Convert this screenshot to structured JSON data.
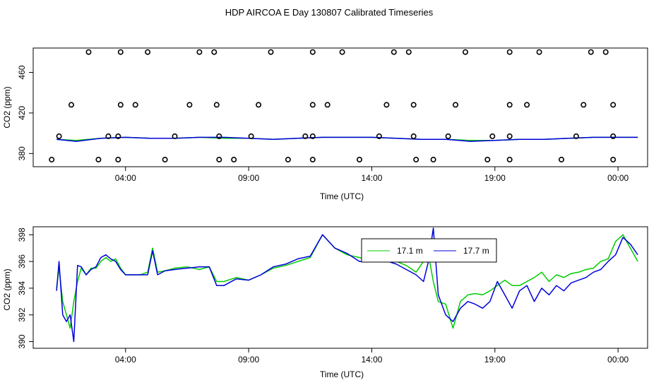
{
  "title": "HDP AIRCOA E  Day 130807  Calibrated Timeseries",
  "colors": {
    "green": "#00cc00",
    "blue": "#0000dd",
    "black": "#000000"
  },
  "chart_data": [
    {
      "type": "line",
      "panel": "top",
      "xlabel": "Time (UTC)",
      "ylabel": "CO2 (ppm)",
      "xlim": [
        0.25,
        25.2
      ],
      "ylim": [
        367,
        484
      ],
      "x_ticks": [
        4,
        9,
        14,
        19,
        24
      ],
      "x_tick_labels": [
        "04:00",
        "09:00",
        "14:00",
        "19:00",
        "00:00"
      ],
      "y_ticks": [
        380,
        420,
        460
      ],
      "y_tick_labels": [
        "380",
        "420",
        "460"
      ],
      "series": [
        {
          "key": "green",
          "x": [
            1.2,
            2.0,
            3.0,
            4.0,
            5.0,
            6.0,
            7.0,
            8.0,
            9.0,
            10.0,
            11.0,
            12.0,
            13.0,
            14.0,
            15.0,
            16.0,
            17.0,
            18.0,
            19.0,
            20.0,
            21.0,
            22.0,
            23.0,
            24.0,
            24.8
          ],
          "y": [
            394,
            393,
            395,
            396,
            395,
            395,
            396,
            395,
            395,
            394,
            395,
            396,
            396,
            396,
            395,
            394,
            394,
            393,
            393,
            394,
            394,
            395,
            396,
            396,
            396
          ]
        },
        {
          "key": "blue",
          "x": [
            1.2,
            2.0,
            3.0,
            4.0,
            5.0,
            6.0,
            7.0,
            8.0,
            9.0,
            10.0,
            11.0,
            12.0,
            13.0,
            14.0,
            15.0,
            16.0,
            17.0,
            18.0,
            19.0,
            20.0,
            21.0,
            22.0,
            23.0,
            24.0,
            24.8
          ],
          "y": [
            394,
            392,
            395,
            396,
            395,
            395,
            396,
            396,
            395,
            394,
            395,
            396,
            396,
            396,
            395,
            394,
            394,
            392,
            393,
            394,
            394,
            395,
            396,
            396,
            396
          ]
        }
      ],
      "points": {
        "x": [
          2.5,
          3.8,
          4.9,
          7.0,
          7.6,
          9.9,
          11.6,
          12.8,
          14.9,
          15.5,
          17.8,
          19.6,
          20.8,
          22.9,
          23.5,
          1.8,
          3.8,
          4.4,
          6.6,
          7.7,
          9.4,
          11.6,
          12.2,
          14.6,
          15.7,
          17.4,
          19.6,
          20.3,
          22.6,
          23.8,
          1.3,
          3.3,
          3.7,
          6.0,
          7.8,
          9.1,
          11.3,
          11.6,
          14.3,
          15.7,
          17.1,
          18.9,
          19.6,
          22.3,
          23.8,
          1.0,
          2.9,
          3.7,
          5.6,
          7.8,
          8.4,
          10.6,
          11.6,
          13.5,
          15.8,
          16.5,
          18.7,
          19.6,
          21.7,
          23.8
        ],
        "y": [
          480,
          480,
          480,
          480,
          480,
          480,
          480,
          480,
          480,
          480,
          480,
          480,
          480,
          480,
          480,
          428,
          428,
          428,
          428,
          428,
          428,
          428,
          428,
          428,
          428,
          428,
          428,
          428,
          428,
          428,
          397,
          397,
          397,
          397,
          397,
          397,
          397,
          397,
          397,
          397,
          397,
          397,
          397,
          397,
          397,
          374,
          374,
          374,
          374,
          374,
          374,
          374,
          374,
          374,
          374,
          374,
          374,
          374,
          374,
          374
        ]
      }
    },
    {
      "type": "line",
      "panel": "bottom",
      "xlabel": "Time (UTC)",
      "ylabel": "CO2 (ppm)",
      "xlim": [
        0.25,
        25.2
      ],
      "ylim": [
        389.5,
        398.6
      ],
      "x_ticks": [
        4,
        9,
        14,
        19,
        24
      ],
      "x_tick_labels": [
        "04:00",
        "09:00",
        "14:00",
        "19:00",
        "00:00"
      ],
      "y_ticks": [
        390,
        392,
        394,
        396,
        398
      ],
      "y_tick_labels": [
        "390",
        "392",
        "394",
        "396",
        "398"
      ],
      "legend": {
        "position": "top-center",
        "entries": [
          {
            "key": "green",
            "label": "17.1 m"
          },
          {
            "key": "blue",
            "label": "17.7 m"
          }
        ]
      },
      "series": [
        {
          "key": "green",
          "x": [
            1.2,
            1.3,
            1.45,
            1.6,
            1.75,
            1.9,
            2.05,
            2.2,
            2.4,
            2.6,
            2.8,
            3.0,
            3.2,
            3.4,
            3.6,
            3.8,
            4.0,
            4.3,
            4.6,
            4.9,
            5.1,
            5.3,
            5.6,
            6.0,
            6.5,
            7.0,
            7.4,
            7.7,
            8.0,
            8.5,
            9.0,
            9.5,
            10.0,
            10.5,
            11.0,
            11.5,
            12.0,
            12.5,
            13.0,
            13.5,
            14.0,
            14.5,
            15.0,
            15.4,
            15.8,
            16.1,
            16.3,
            16.5,
            16.7,
            17.0,
            17.3,
            17.6,
            17.9,
            18.2,
            18.5,
            18.8,
            19.1,
            19.4,
            19.7,
            20.0,
            20.3,
            20.6,
            20.9,
            21.2,
            21.5,
            21.8,
            22.1,
            22.4,
            22.7,
            23.0,
            23.3,
            23.6,
            23.9,
            24.2,
            24.5,
            24.8
          ],
          "y": [
            394,
            395.5,
            393,
            392,
            391,
            393,
            394.5,
            395.5,
            395,
            395.5,
            395.5,
            396,
            396.3,
            396,
            396.2,
            395.5,
            395,
            395,
            395,
            395.2,
            397,
            395.2,
            395.3,
            395.5,
            395.6,
            395.4,
            395.6,
            394.5,
            394.5,
            394.8,
            394.6,
            395,
            395.5,
            395.7,
            396,
            396.3,
            398,
            397,
            396.5,
            396.3,
            396,
            396.2,
            396,
            395.7,
            395.2,
            396,
            396.5,
            394.5,
            393,
            392.8,
            391,
            393,
            393.5,
            393.6,
            393.5,
            393.8,
            394.2,
            394.6,
            394.2,
            394.2,
            394.5,
            394.8,
            395.2,
            394.5,
            395,
            394.8,
            395.1,
            395.2,
            395.4,
            395.5,
            396,
            396.2,
            397.5,
            398,
            397,
            396
          ]
        },
        {
          "key": "blue",
          "x": [
            1.2,
            1.3,
            1.45,
            1.6,
            1.75,
            1.9,
            2.05,
            2.2,
            2.4,
            2.6,
            2.8,
            3.0,
            3.2,
            3.4,
            3.6,
            3.8,
            4.0,
            4.3,
            4.6,
            4.9,
            5.1,
            5.3,
            5.6,
            6.0,
            6.5,
            7.0,
            7.4,
            7.7,
            8.0,
            8.5,
            9.0,
            9.5,
            10.0,
            10.5,
            11.0,
            11.5,
            12.0,
            12.5,
            13.0,
            13.5,
            14.0,
            14.5,
            15.0,
            15.4,
            15.8,
            16.1,
            16.3,
            16.5,
            16.7,
            17.0,
            17.3,
            17.6,
            17.9,
            18.2,
            18.5,
            18.8,
            19.1,
            19.4,
            19.7,
            20.0,
            20.3,
            20.6,
            20.9,
            21.2,
            21.5,
            21.8,
            22.1,
            22.4,
            22.7,
            23.0,
            23.3,
            23.6,
            23.9,
            24.2,
            24.5,
            24.8
          ],
          "y": [
            393.8,
            396,
            392,
            391.5,
            392,
            390,
            395.7,
            395.6,
            395,
            395.4,
            395.6,
            396.3,
            396.5,
            396.2,
            396,
            395.4,
            395,
            395,
            395,
            395,
            396.8,
            395,
            395.3,
            395.4,
            395.5,
            395.6,
            395.6,
            394.2,
            394.2,
            394.7,
            394.6,
            395,
            395.6,
            395.8,
            396.2,
            396.4,
            398,
            397,
            396.6,
            396,
            396,
            396.1,
            395.8,
            395.4,
            395,
            394.5,
            396,
            398.5,
            393.5,
            392,
            391.5,
            392.5,
            393,
            392.8,
            392.5,
            393,
            394.5,
            393.5,
            392.5,
            393.8,
            394.2,
            393,
            394,
            393.5,
            394.2,
            393.8,
            394.4,
            394.6,
            394.8,
            395.2,
            395.4,
            396,
            396.5,
            397.8,
            397.3,
            396.5
          ]
        }
      ]
    }
  ]
}
